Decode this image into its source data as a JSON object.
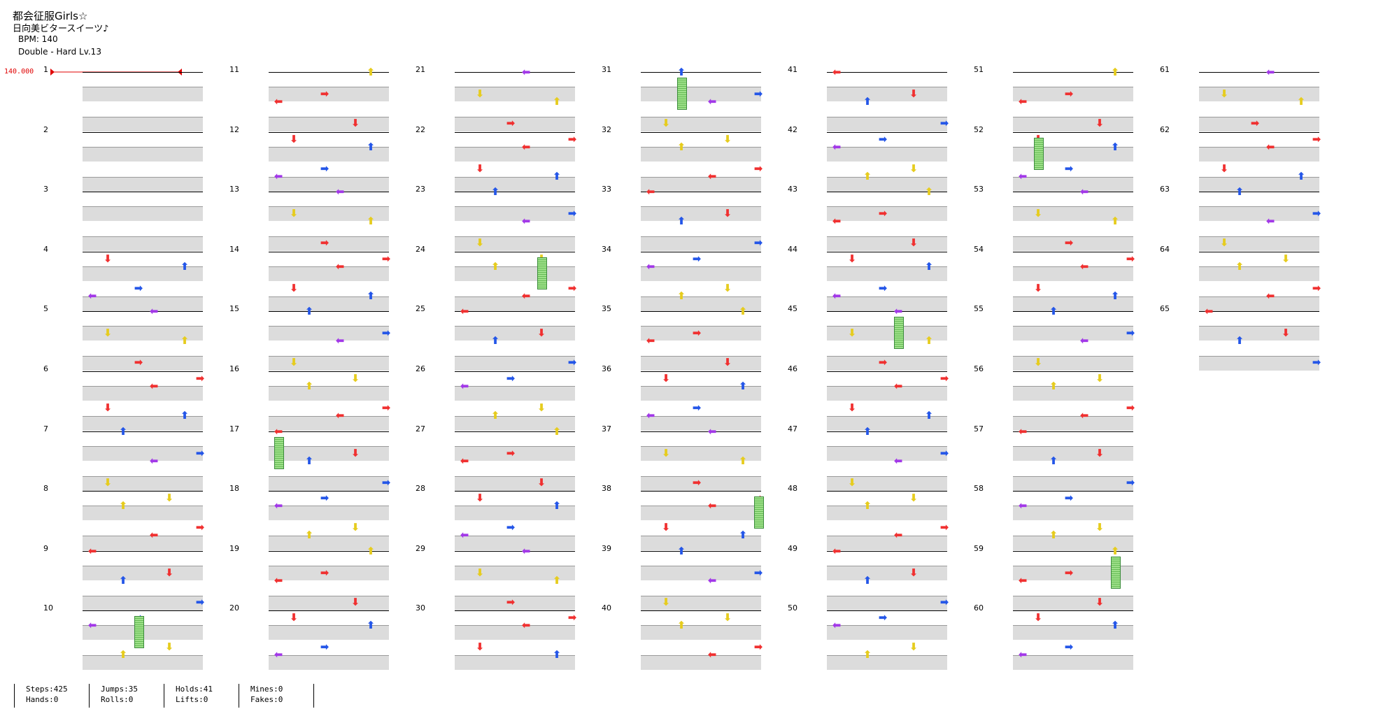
{
  "header": {
    "title": "都会征服Girls☆",
    "subtitle": "日向美ビタースイーツ♪",
    "bpm": "BPM: 140",
    "difficulty": "Double - Hard  Lv.13",
    "bpm_marker": "140.000"
  },
  "measures": [
    "1",
    "2",
    "3",
    "4",
    "5",
    "6",
    "7",
    "8",
    "9",
    "10",
    "11",
    "12",
    "13",
    "14",
    "15",
    "16",
    "17",
    "18",
    "19",
    "20",
    "21",
    "22",
    "23",
    "24",
    "25",
    "26",
    "27",
    "28",
    "29",
    "30",
    "31",
    "32",
    "33",
    "34",
    "35",
    "36",
    "37",
    "38",
    "39",
    "40",
    "41",
    "42",
    "43",
    "44",
    "45",
    "46",
    "47",
    "48",
    "49",
    "50",
    "51",
    "52",
    "53",
    "54",
    "55",
    "56",
    "57",
    "58",
    "59",
    "60",
    "61",
    "62",
    "63",
    "64",
    "65"
  ],
  "arrow_glyphs": {
    "left": "⬅",
    "down": "⬇",
    "up": "⬆",
    "right": "➡"
  },
  "colors": {
    "red": "#f03030",
    "blue": "#2456e8",
    "yellow": "#e6cc1e",
    "purple": "#a238e8",
    "hold": "#66bb55"
  },
  "stats": {
    "steps": "Steps:425",
    "hands": "Hands:0",
    "jumps": "Jumps:35",
    "rolls": "Rolls:0",
    "holds": "Holds:41",
    "lifts": "Lifts:0",
    "mines": "Mines:0",
    "fakes": "Fakes:0"
  }
}
